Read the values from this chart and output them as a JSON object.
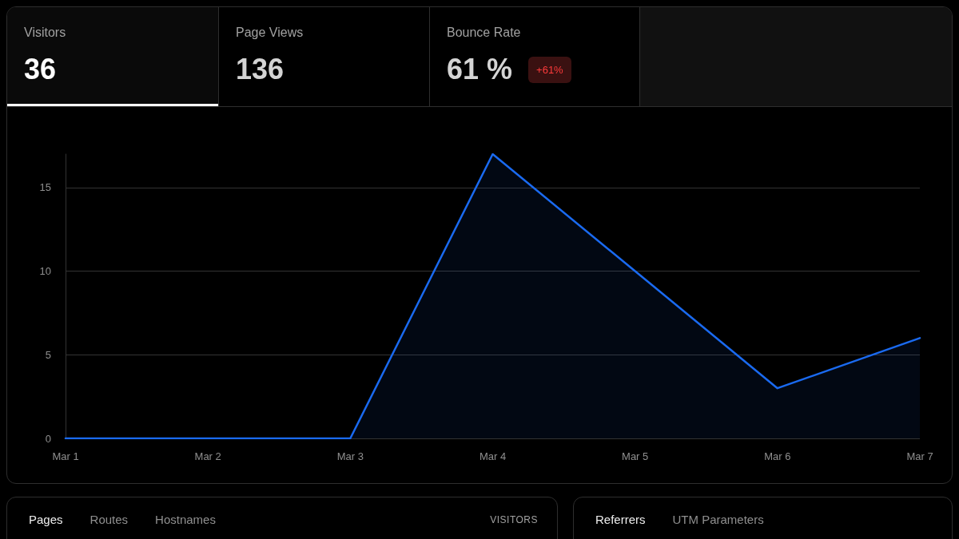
{
  "chart_data": [
    {
      "type": "other",
      "categories": [
        "Visitors",
        "Page Views",
        "Bounce Rate"
      ],
      "values": [
        36,
        136,
        61
      ],
      "value_labels": [
        "36",
        "136",
        "61 %"
      ],
      "annotations": [
        {
          "text": "+61%",
          "x": "Bounce Rate"
        }
      ]
    },
    {
      "type": "area",
      "categories": [
        "Mar 1",
        "Mar 2",
        "Mar 3",
        "Mar 4",
        "Mar 5",
        "Mar 6",
        "Mar 7"
      ],
      "values": [
        0,
        0,
        0,
        17,
        10,
        3,
        6
      ],
      "color": "#1a6af0",
      "ylim": [
        0,
        17
      ],
      "yticks": [
        0,
        5,
        10,
        15
      ],
      "grid": "y",
      "marker": "none",
      "line_style": "solid"
    },
    {
      "type": "other",
      "annotations": [
        "Pages",
        "Routes",
        "Hostnames"
      ],
      "ylabel": "VISITORS"
    },
    {
      "type": "other",
      "annotations": [
        "Referrers",
        "UTM Parameters"
      ]
    }
  ]
}
